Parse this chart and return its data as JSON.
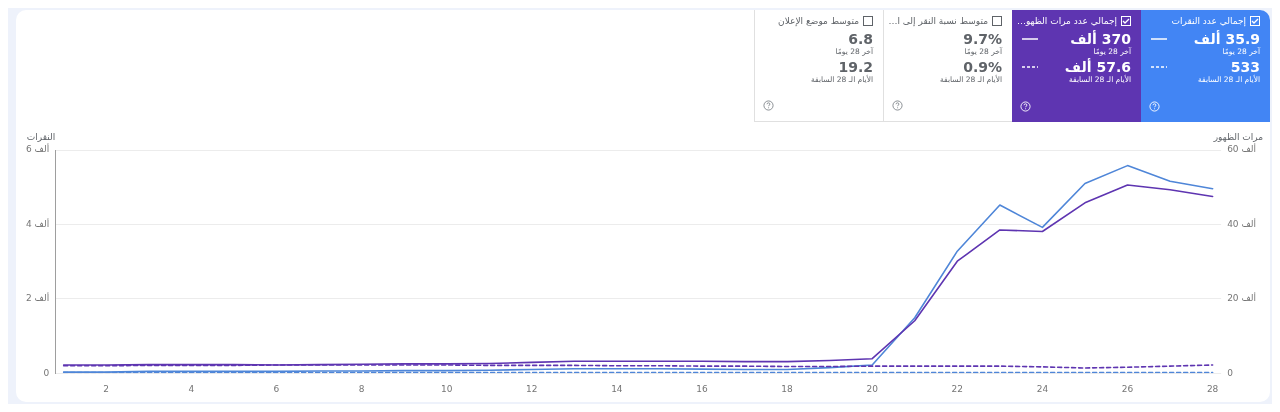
{
  "chart_data": [
    {
      "type": "other",
      "colors": [
        "#4285f4",
        "#5e35b1",
        null,
        null
      ],
      "annotations": [
        "إجمالي عدد النقرات",
        "35.9 ألف",
        "آخر 28 يومًا",
        "533",
        "الأيام الـ 28 السابقة",
        "إجمالي عدد مرات الظهو…",
        "370 ألف",
        "آخر 28 يومًا",
        "57.6 ألف",
        "الأيام الـ 28 السابقة",
        "متوسط نسبة النقر إلى ا…",
        "9.7%",
        "آخر 28 يومًا",
        "0.9%",
        "الأيام الـ 28 السابقة",
        "متوسط موضع الإعلان",
        "6.8",
        "آخر 28 يومًا",
        "19.2",
        "الأيام الـ 28 السابقة"
      ]
    },
    {
      "type": "line",
      "ylabel": "النقرات",
      "y2label": "مرات الظهور",
      "x": [
        1,
        2,
        3,
        4,
        5,
        6,
        7,
        8,
        9,
        10,
        11,
        12,
        13,
        14,
        15,
        16,
        17,
        18,
        19,
        20,
        21,
        22,
        23,
        24,
        25,
        26,
        27,
        28
      ],
      "xlim": [
        0.8,
        28.2
      ],
      "xticks": [
        2,
        4,
        6,
        8,
        10,
        12,
        14,
        16,
        18,
        20,
        22,
        24,
        26,
        28
      ],
      "ylim": [
        0,
        6
      ],
      "yticks": [
        0,
        {
          "value": 2,
          "label": "2 ألف"
        },
        {
          "value": 4,
          "label": "4 ألف"
        },
        {
          "value": 6,
          "label": "6 ألف"
        }
      ],
      "y2lim": [
        0,
        60
      ],
      "y2ticks": [
        0,
        {
          "value": 20,
          "label": "20 ألف"
        },
        {
          "value": 40,
          "label": "40 ألف"
        },
        {
          "value": 60,
          "label": "60 ألف"
        }
      ],
      "grid": "y",
      "legend": false,
      "marker": "none",
      "series": [
        {
          "color": "#5e35b1",
          "axis": "y2",
          "line_style": "dashed",
          "values": [
            2.0,
            2.0,
            2.1,
            2.1,
            2.1,
            2.2,
            2.2,
            2.2,
            2.2,
            2.2,
            2.1,
            2.1,
            2.1,
            2.0,
            2.0,
            1.9,
            1.9,
            1.8,
            1.8,
            1.9,
            1.9,
            1.9,
            1.9,
            1.7,
            1.4,
            1.6,
            1.9,
            2.2
          ]
        },
        {
          "color": "#4f86d8",
          "line_style": "dashed",
          "values": [
            0.02,
            0.02,
            0.02,
            0.02,
            0.02,
            0.02,
            0.02,
            0.02,
            0.02,
            0.02,
            0.02,
            0.02,
            0.02,
            0.02,
            0.02,
            0.02,
            0.02,
            0.02,
            0.02,
            0.02,
            0.02,
            0.02,
            0.02,
            0.02,
            0.02,
            0.02,
            0.02,
            0.02
          ]
        },
        {
          "color": "#5e35b1",
          "axis": "y2",
          "line_style": "solid",
          "values": [
            2.2,
            2.2,
            2.3,
            2.3,
            2.3,
            2.2,
            2.3,
            2.4,
            2.5,
            2.5,
            2.6,
            2.9,
            3.2,
            3.2,
            3.2,
            3.2,
            3.1,
            3.1,
            3.4,
            3.9,
            14.1,
            30.1,
            38.5,
            38.1,
            45.8,
            50.6,
            49.3,
            47.5
          ]
        },
        {
          "color": "#4f86d8",
          "line_style": "solid",
          "values": [
            0.03,
            0.03,
            0.05,
            0.05,
            0.05,
            0.05,
            0.06,
            0.06,
            0.07,
            0.07,
            0.08,
            0.1,
            0.12,
            0.12,
            0.12,
            0.11,
            0.1,
            0.1,
            0.15,
            0.22,
            1.49,
            3.28,
            4.52,
            3.92,
            5.1,
            5.58,
            5.16,
            4.96
          ]
        }
      ]
    }
  ]
}
